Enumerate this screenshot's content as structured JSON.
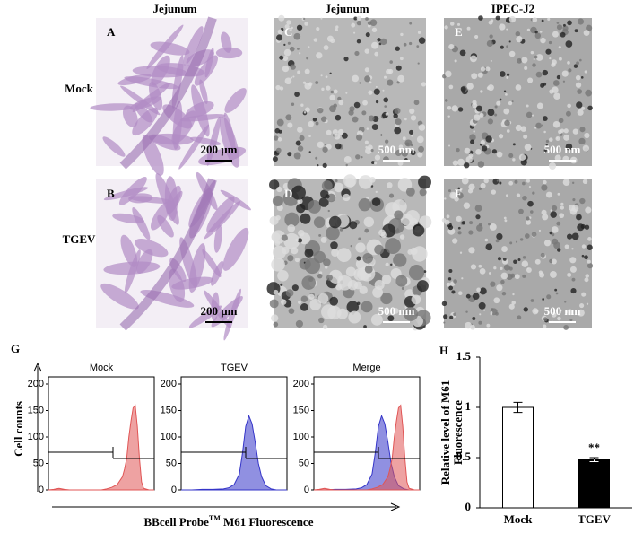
{
  "figure": {
    "column_headers": [
      "Jejunum",
      "Jejunum",
      "IPEC-J2"
    ],
    "row_labels": [
      "Mock",
      "TGEV"
    ],
    "panels": [
      {
        "letter": "A",
        "scale": "200 μm"
      },
      {
        "letter": "C",
        "scale": "500 nm"
      },
      {
        "letter": "E",
        "scale": "500 nm"
      },
      {
        "letter": "B",
        "scale": "200 μm"
      },
      {
        "letter": "D",
        "scale": "500 nm"
      },
      {
        "letter": "F",
        "scale": "500 nm"
      }
    ],
    "panel_g": {
      "letter": "G",
      "ylabel": "Cell counts",
      "xlabel": [
        "BBcell Probe",
        "TM",
        " M61 Fluorescence"
      ]
    },
    "panel_h": {
      "letter": "H"
    }
  },
  "chart_data": [
    {
      "type": "area",
      "title": "Mock",
      "xlim": [
        0,
        100
      ],
      "ylim": [
        0,
        200
      ],
      "yticks": [
        0,
        50,
        100,
        150,
        200
      ],
      "series": [
        {
          "color": "#e05555",
          "x": [
            0,
            5,
            10,
            15,
            20,
            25,
            30,
            35,
            40,
            45,
            50,
            55,
            60,
            65,
            70,
            72,
            74,
            76,
            78,
            80,
            82,
            84,
            86,
            88,
            90,
            95,
            100
          ],
          "values": [
            0,
            1,
            3,
            1,
            0,
            0,
            0,
            0,
            0,
            0,
            0,
            2,
            5,
            10,
            25,
            40,
            60,
            100,
            130,
            155,
            160,
            120,
            60,
            15,
            3,
            0,
            0
          ]
        }
      ]
    },
    {
      "type": "area",
      "title": "TGEV",
      "xlim": [
        0,
        100
      ],
      "ylim": [
        0,
        200
      ],
      "yticks": [
        0,
        50,
        100,
        150,
        200
      ],
      "series": [
        {
          "color": "#3535c8",
          "x": [
            0,
            10,
            20,
            30,
            40,
            45,
            50,
            55,
            58,
            61,
            64,
            67,
            70,
            73,
            76,
            80,
            85,
            90,
            100
          ],
          "values": [
            0,
            0,
            1,
            1,
            2,
            4,
            10,
            30,
            70,
            120,
            140,
            125,
            90,
            50,
            25,
            8,
            2,
            0,
            0
          ]
        }
      ]
    },
    {
      "type": "area",
      "title": "Merge",
      "xlim": [
        0,
        100
      ],
      "ylim": [
        0,
        200
      ],
      "yticks": [
        0,
        50,
        100,
        150,
        200
      ],
      "series": [
        {
          "color": "#3535c8",
          "x": [
            0,
            10,
            20,
            30,
            40,
            45,
            50,
            55,
            58,
            61,
            64,
            67,
            70,
            73,
            76,
            80,
            85,
            90,
            100
          ],
          "values": [
            0,
            0,
            1,
            1,
            2,
            4,
            10,
            30,
            70,
            120,
            140,
            125,
            90,
            50,
            25,
            8,
            2,
            0,
            0
          ]
        },
        {
          "color": "#e05555",
          "x": [
            0,
            5,
            10,
            15,
            20,
            25,
            30,
            35,
            40,
            45,
            50,
            55,
            60,
            65,
            70,
            72,
            74,
            76,
            78,
            80,
            82,
            84,
            86,
            88,
            90,
            95,
            100
          ],
          "values": [
            0,
            1,
            3,
            1,
            0,
            0,
            0,
            0,
            0,
            0,
            0,
            2,
            5,
            10,
            25,
            40,
            60,
            100,
            130,
            155,
            160,
            120,
            60,
            15,
            3,
            0,
            0
          ]
        }
      ]
    },
    {
      "type": "bar",
      "ylabel": [
        "Relative level of  M61",
        "Fluorescence"
      ],
      "categories": [
        "Mock",
        "TGEV"
      ],
      "values": [
        1.0,
        0.48
      ],
      "errors": [
        0.05,
        0.02
      ],
      "colors": [
        "#ffffff",
        "#000000"
      ],
      "annotation": "**",
      "ylim": [
        0,
        1.5
      ],
      "yticks": [
        0,
        0.5,
        1,
        1.5
      ]
    }
  ]
}
